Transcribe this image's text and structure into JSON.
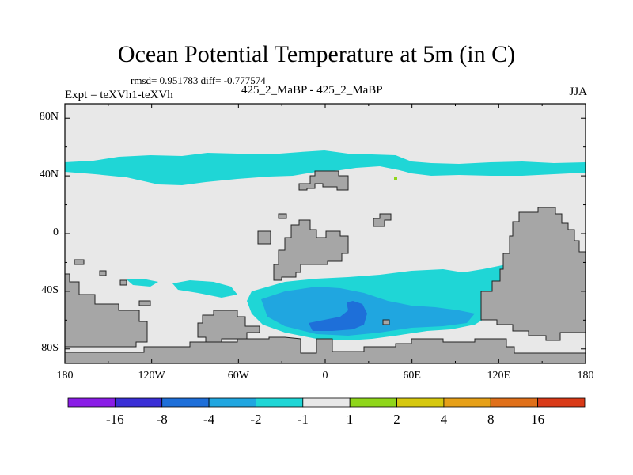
{
  "title": "Ocean Potential Temperature at 5m (in C)",
  "stats": "rmsd= 0.951783 diff= -0.777574",
  "experiment": "Expt = teXVh1-teXVh",
  "period": "425_2_MaBP - 425_2_MaBP",
  "season": "JJA",
  "axes": {
    "lat_ticks": [
      "80N",
      "40N",
      "0",
      "40S",
      "80S"
    ],
    "lat_values": [
      80,
      40,
      0,
      -40,
      -80
    ],
    "lon_ticks": [
      "180",
      "120W",
      "60W",
      "0",
      "60E",
      "120E",
      "180"
    ],
    "lon_values": [
      -180,
      -120,
      -60,
      0,
      60,
      120,
      180
    ],
    "lat_range": [
      -90,
      90
    ],
    "lon_range": [
      -180,
      180
    ]
  },
  "colorbar": {
    "labels": [
      "-16",
      "-8",
      "-4",
      "-2",
      "-1",
      "1",
      "2",
      "4",
      "8",
      "16"
    ],
    "colors": [
      "#8a1de6",
      "#3a2fd6",
      "#1e6fd9",
      "#20a6e0",
      "#1fd6d6",
      "#e8e8e8",
      "#8fd61a",
      "#d6c80f",
      "#e6a018",
      "#e0701a",
      "#d93a18"
    ]
  },
  "colors": {
    "land": "#a6a6a6",
    "ocean_neutral": "#e8e8e8",
    "cool_light": "#1fd6d6",
    "cool_mid": "#20a6e0",
    "cool_strong": "#1e6fd9",
    "warm": "#8fd61a"
  }
}
